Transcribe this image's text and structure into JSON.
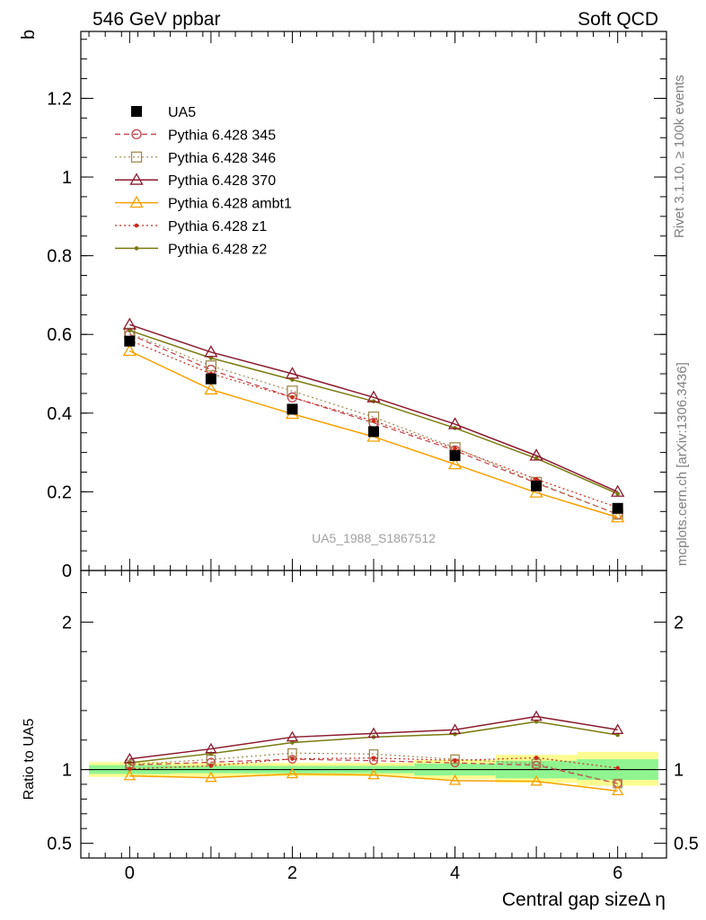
{
  "header": {
    "left": "546 GeV ppbar",
    "right": "Soft QCD"
  },
  "side_labels": {
    "rivet": "Rivet 3.1.10, ≥ 100k events",
    "mcplots": "mcplots.cern.ch [arXiv:1306.3436]"
  },
  "analysis_id": "UA5_1988_S1867512",
  "colors": {
    "UA5": "#000000",
    "p345": "#c0404a",
    "p346": "#a08a50",
    "p370": "#8b1a2e",
    "ambt1": "#f5a000",
    "z1": "#cc2a1a",
    "z2": "#7a7a10",
    "band_inner": "#90f590",
    "band_outer": "#fcfc90"
  },
  "chart_data": [
    {
      "type": "line",
      "ylabel": "b",
      "xlim": [
        -0.6,
        6.6
      ],
      "ylim": [
        0,
        1.37
      ],
      "x": [
        0,
        1,
        2,
        3,
        4,
        5,
        6
      ],
      "yticks": [
        "0",
        "0.2",
        "0.4",
        "0.6",
        "0.8",
        "1",
        "1.2"
      ],
      "legend_position": "top-left",
      "series": [
        {
          "name": "UA5",
          "style": "data",
          "values": [
            0.583,
            0.487,
            0.41,
            0.353,
            0.292,
            0.215,
            0.158
          ]
        },
        {
          "name": "Pythia 6.428 345",
          "style": "dashed-circle",
          "values": [
            0.6,
            0.51,
            0.44,
            0.375,
            0.305,
            0.222,
            0.143
          ]
        },
        {
          "name": "Pythia 6.428 346",
          "style": "dotted-square",
          "values": [
            0.603,
            0.52,
            0.456,
            0.39,
            0.312,
            0.224,
            0.143
          ]
        },
        {
          "name": "Pythia 6.428 370",
          "style": "solid-triangle",
          "values": [
            0.625,
            0.555,
            0.5,
            0.44,
            0.372,
            0.292,
            0.2
          ]
        },
        {
          "name": "Pythia 6.428 ambt1",
          "style": "solid-triangle",
          "values": [
            0.558,
            0.46,
            0.398,
            0.34,
            0.27,
            0.198,
            0.135
          ]
        },
        {
          "name": "Pythia 6.428 z1",
          "style": "dotted-dot",
          "values": [
            0.585,
            0.5,
            0.44,
            0.38,
            0.31,
            0.232,
            0.16
          ]
        },
        {
          "name": "Pythia 6.428 z2",
          "style": "solid-dot",
          "values": [
            0.61,
            0.54,
            0.485,
            0.43,
            0.362,
            0.285,
            0.195
          ]
        }
      ]
    },
    {
      "type": "line",
      "ylabel": "Ratio to UA5",
      "xlabel": "Central gap sizeΔ η",
      "xlim": [
        -0.6,
        6.6
      ],
      "ylim": [
        0.4,
        2.35
      ],
      "x": [
        0,
        1,
        2,
        3,
        4,
        5,
        6
      ],
      "xticks": [
        "0",
        "2",
        "4",
        "6"
      ],
      "yticks": [
        "0.5",
        "1",
        "2"
      ],
      "reference_line": 1,
      "band_inner": [
        0.97,
        0.975,
        0.975,
        0.975,
        0.96,
        0.94,
        0.93
      ],
      "band_inner_hi": [
        1.03,
        1.025,
        1.025,
        1.025,
        1.04,
        1.06,
        1.07
      ],
      "band_outer": [
        0.95,
        0.955,
        0.955,
        0.955,
        0.935,
        0.91,
        0.89
      ],
      "band_outer_hi": [
        1.05,
        1.045,
        1.045,
        1.045,
        1.065,
        1.1,
        1.12
      ],
      "series": [
        {
          "name": "Pythia 6.428 345",
          "values": [
            1.03,
            1.05,
            1.07,
            1.06,
            1.045,
            1.03,
            0.905
          ]
        },
        {
          "name": "Pythia 6.428 346",
          "values": [
            1.035,
            1.068,
            1.112,
            1.105,
            1.07,
            1.04,
            0.905
          ]
        },
        {
          "name": "Pythia 6.428 370",
          "values": [
            1.072,
            1.14,
            1.22,
            1.245,
            1.27,
            1.36,
            1.27
          ]
        },
        {
          "name": "Pythia 6.428 ambt1",
          "values": [
            0.957,
            0.945,
            0.97,
            0.963,
            0.925,
            0.92,
            0.855
          ]
        },
        {
          "name": "Pythia 6.428 z1",
          "values": [
            1.005,
            1.025,
            1.073,
            1.078,
            1.062,
            1.08,
            1.01
          ]
        },
        {
          "name": "Pythia 6.428 z2",
          "values": [
            1.046,
            1.108,
            1.183,
            1.22,
            1.24,
            1.325,
            1.235
          ]
        }
      ]
    }
  ]
}
